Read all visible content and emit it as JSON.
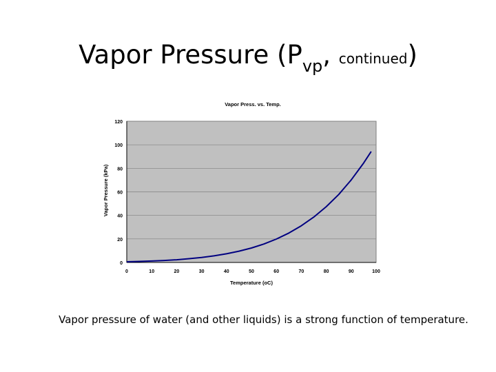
{
  "slide": {
    "title_main": "Vapor Pressure (P",
    "title_sub": "vp",
    "title_comma": ", ",
    "title_small": "continued",
    "title_close": ")",
    "caption": "Vapor pressure of water (and other liquids) is a strong function of temperature."
  },
  "chart_data": {
    "type": "line",
    "title": "Vapor Press. vs. Temp.",
    "xlabel": "Temperature (oC)",
    "ylabel": "Vapor Pressure (kPa)",
    "xlim": [
      0,
      100
    ],
    "ylim": [
      0,
      120
    ],
    "xticks": [
      0,
      10,
      20,
      30,
      40,
      50,
      60,
      70,
      80,
      90,
      100
    ],
    "yticks": [
      0,
      20,
      40,
      60,
      80,
      100,
      120
    ],
    "grid": true,
    "colors": {
      "plot_bg": "#c0c0c0",
      "line": "#000080",
      "grid": "#808080"
    },
    "series": [
      {
        "x": [
          0,
          5,
          10,
          15,
          20,
          25,
          30,
          35,
          40,
          45,
          50,
          55,
          60,
          65,
          70,
          75,
          80,
          85,
          90,
          95,
          98
        ],
        "values": [
          0.6,
          0.9,
          1.2,
          1.7,
          2.3,
          3.2,
          4.2,
          5.6,
          7.4,
          9.6,
          12.3,
          15.7,
          19.9,
          25.0,
          31.2,
          38.6,
          47.4,
          57.8,
          70.1,
          84.5,
          94.3
        ]
      }
    ]
  }
}
